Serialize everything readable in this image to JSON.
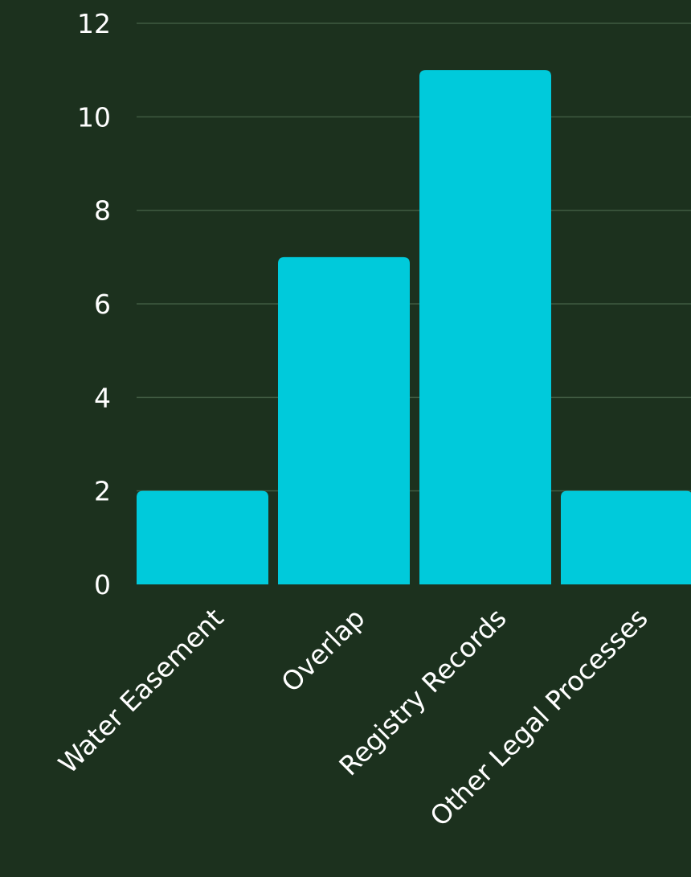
{
  "colors": {
    "background": "#1c311e",
    "bar": "#00cadb",
    "grid": "#3f5a41",
    "text": "#ffffff"
  },
  "chart_data": {
    "type": "bar",
    "title": "",
    "xlabel": "",
    "ylabel": "",
    "categories": [
      "Water Easement",
      "Overlap",
      "Registry Records",
      "Other Legal Processes"
    ],
    "values": [
      2,
      7,
      11,
      2
    ],
    "ylim": [
      0,
      12
    ],
    "yticks": [
      0,
      2,
      4,
      6,
      8,
      10,
      12
    ],
    "grid": "horizontal",
    "legend": "none"
  }
}
